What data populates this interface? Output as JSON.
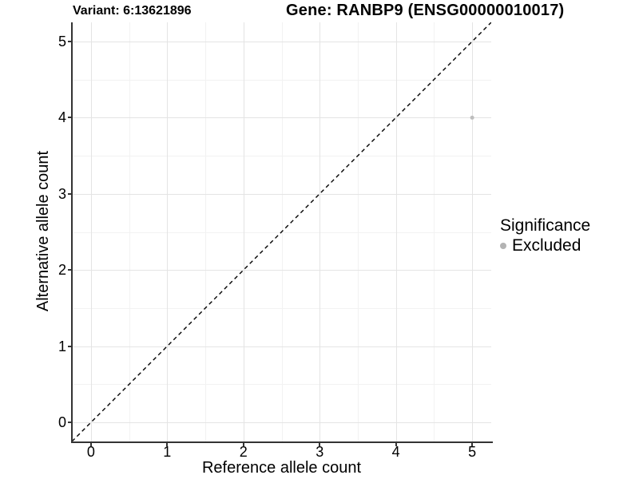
{
  "chart_data": {
    "type": "scatter",
    "title_left": "Variant: 6:13621896",
    "title_right": "Gene: RANBP9 (ENSG00000010017)",
    "xlabel": "Reference allele count",
    "ylabel": "Alternative allele count",
    "xlim": [
      -0.25,
      5.25
    ],
    "ylim": [
      -0.25,
      5.25
    ],
    "x_ticks": [
      0,
      1,
      2,
      3,
      4,
      5
    ],
    "y_ticks": [
      0,
      1,
      2,
      3,
      4,
      5
    ],
    "grid": {
      "major": true,
      "minor": true
    },
    "reference_line": {
      "slope": 1,
      "intercept": 0,
      "style": "dashed",
      "color": "#000000"
    },
    "series": [
      {
        "name": "Excluded",
        "color": "#bdbdbd",
        "point_radius": 2.5,
        "points": [
          {
            "x": 5,
            "y": 4
          }
        ]
      }
    ],
    "legend": {
      "position": "right",
      "title": "Significance",
      "items": [
        {
          "label": "Excluded",
          "color": "#b3b3b3"
        }
      ]
    }
  },
  "colors": {
    "background": "#ffffff",
    "grid_major": "#e4e4e4",
    "grid_minor": "#f2f2f2",
    "axis_line": "#333333",
    "tick_mark": "#333333",
    "text": "#000000"
  }
}
